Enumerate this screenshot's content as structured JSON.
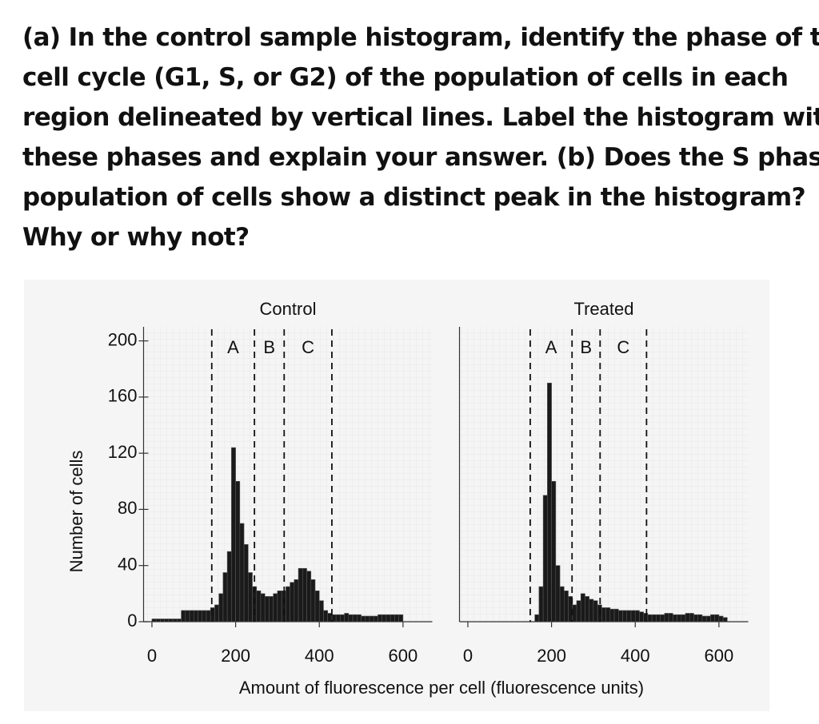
{
  "question": [
    "(a) In the control sample histogram, identify the phase of the",
    "cell cycle (G1, S, or G2) of the population of cells in each",
    "region delineated by vertical lines. Label the histogram with",
    "these phases and explain your answer. (b) Does the S phase",
    "population of cells show a distinct peak in the histogram?",
    "Why or why not?"
  ],
  "chart_data": [
    {
      "type": "histogram",
      "title": "Control",
      "ylabel": "Number of cells",
      "xlabel": "Amount of fluorescence per cell (fluorescence units)",
      "color": "#1a1a1a",
      "bins": [
        0,
        10,
        20,
        30,
        40,
        50,
        60,
        70,
        80,
        90,
        100,
        110,
        120,
        130,
        140,
        150,
        160,
        170,
        180,
        190,
        200,
        210,
        220,
        230,
        240,
        250,
        260,
        270,
        280,
        290,
        300,
        310,
        320,
        330,
        340,
        350,
        360,
        370,
        380,
        390,
        400,
        410,
        420,
        430,
        440,
        450,
        460,
        470,
        480,
        490,
        500,
        510,
        520,
        530,
        540,
        550,
        560,
        570,
        580,
        590,
        600
      ],
      "counts": [
        2,
        2,
        2,
        2,
        2,
        2,
        2,
        8,
        8,
        8,
        8,
        8,
        8,
        8,
        10,
        12,
        20,
        35,
        50,
        124,
        100,
        70,
        55,
        35,
        25,
        22,
        20,
        18,
        18,
        20,
        22,
        22,
        25,
        28,
        30,
        38,
        38,
        36,
        30,
        22,
        15,
        8,
        6,
        5,
        5,
        5,
        6,
        5,
        5,
        5,
        4,
        4,
        4,
        4,
        5,
        5,
        5,
        5,
        5,
        5
      ],
      "xlim": [
        -20,
        670
      ],
      "ylim": [
        0,
        210
      ],
      "xticks": [
        0,
        200,
        400,
        600
      ],
      "yticks": [
        0,
        40,
        80,
        120,
        160,
        200
      ],
      "dividers": [
        143,
        245,
        316,
        430
      ],
      "regions": [
        "A",
        "B",
        "C"
      ]
    },
    {
      "type": "histogram",
      "title": "Treated",
      "color": "#1a1a1a",
      "bins": [
        0,
        10,
        20,
        30,
        40,
        50,
        60,
        70,
        80,
        90,
        100,
        110,
        120,
        130,
        140,
        150,
        160,
        170,
        180,
        190,
        200,
        210,
        220,
        230,
        240,
        250,
        260,
        270,
        280,
        290,
        300,
        310,
        320,
        330,
        340,
        350,
        360,
        370,
        380,
        390,
        400,
        410,
        420,
        430,
        440,
        450,
        460,
        470,
        480,
        490,
        500,
        510,
        520,
        530,
        540,
        550,
        560,
        570,
        580,
        590,
        600,
        610,
        620
      ],
      "counts": [
        0,
        0,
        0,
        0,
        0,
        0,
        0,
        0,
        0,
        0,
        0,
        0,
        0,
        0,
        0,
        0,
        5,
        25,
        90,
        170,
        100,
        40,
        25,
        22,
        18,
        12,
        15,
        20,
        18,
        16,
        15,
        12,
        10,
        10,
        9,
        9,
        8,
        8,
        8,
        8,
        8,
        7,
        6,
        5,
        5,
        5,
        5,
        6,
        6,
        5,
        5,
        5,
        6,
        6,
        5,
        5,
        4,
        4,
        5,
        5,
        4,
        3
      ],
      "xlim": [
        -20,
        670
      ],
      "ylim": [
        0,
        210
      ],
      "xticks": [
        0,
        200,
        400,
        600
      ],
      "dividers": [
        149,
        249,
        316,
        427
      ],
      "regions": [
        "A",
        "B",
        "C"
      ]
    }
  ]
}
